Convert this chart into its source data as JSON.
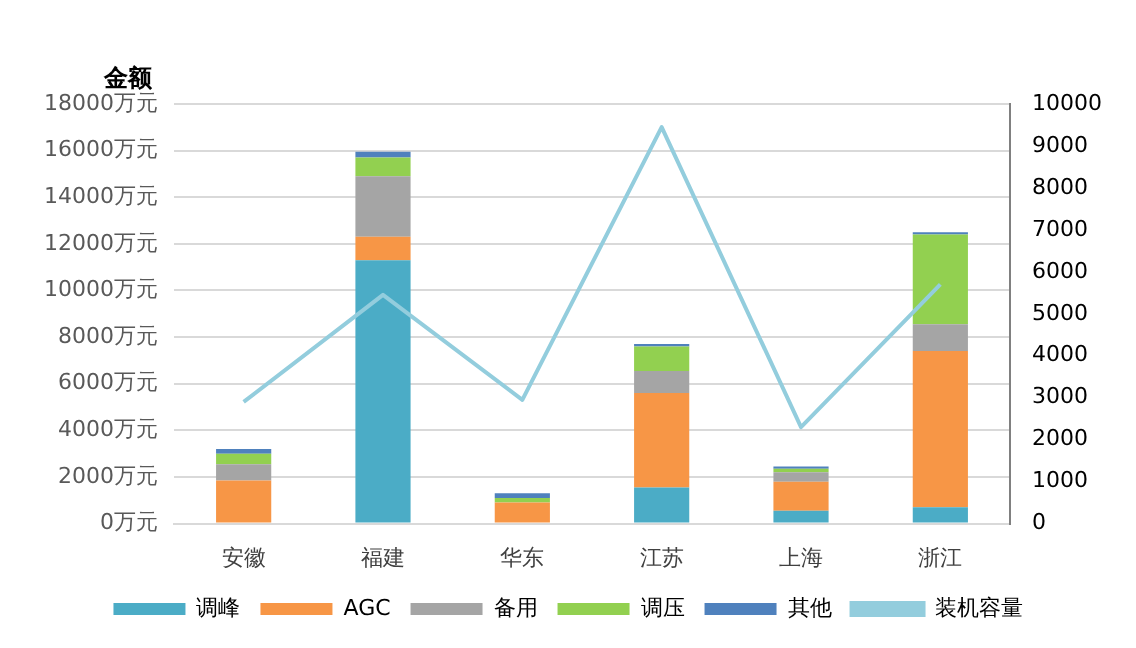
{
  "chart_data": {
    "type": "bar",
    "stacked": true,
    "ylabel": "金额",
    "categories": [
      "安徽",
      "福建",
      "华东",
      "江苏",
      "上海",
      "浙江"
    ],
    "series": [
      {
        "name": "调峰",
        "color": "#4bacc6",
        "values": [
          0,
          11300,
          0,
          1550,
          550,
          700
        ]
      },
      {
        "name": "AGC",
        "color": "#f79646",
        "values": [
          1850,
          1000,
          900,
          4050,
          1250,
          6700
        ]
      },
      {
        "name": "备用",
        "color": "#a5a5a5",
        "values": [
          700,
          2600,
          null,
          950,
          400,
          1150
        ]
      },
      {
        "name": "调压",
        "color": "#92d050",
        "values": [
          450,
          800,
          200,
          1050,
          150,
          3850
        ]
      },
      {
        "name": "其他",
        "color": "#4f81bd",
        "values": [
          200,
          250,
          200,
          100,
          100,
          100
        ]
      },
      {
        "name": "装机容量",
        "type": "line",
        "axis": "y2",
        "color": "#93cddd",
        "values": [
          2900,
          5450,
          2950,
          9450,
          2300,
          5700
        ]
      }
    ],
    "ylim": [
      0,
      18000
    ],
    "yticks": [
      {
        "value": 0,
        "label": "0万元"
      },
      {
        "value": 2000,
        "label": "2000万元"
      },
      {
        "value": 4000,
        "label": "4000万元"
      },
      {
        "value": 6000,
        "label": "6000万元"
      },
      {
        "value": 8000,
        "label": "8000万元"
      },
      {
        "value": 10000,
        "label": "10000万元"
      },
      {
        "value": 12000,
        "label": "12000万元"
      },
      {
        "value": 14000,
        "label": "14000万元"
      },
      {
        "value": 16000,
        "label": "16000万元"
      },
      {
        "value": 18000,
        "label": "18000万元"
      }
    ],
    "y2lim": [
      0,
      10000
    ],
    "y2ticks": [
      0,
      1000,
      2000,
      3000,
      4000,
      5000,
      6000,
      7000,
      8000,
      9000,
      10000
    ],
    "grid": "y",
    "legend": "bottom",
    "marker": "none"
  }
}
